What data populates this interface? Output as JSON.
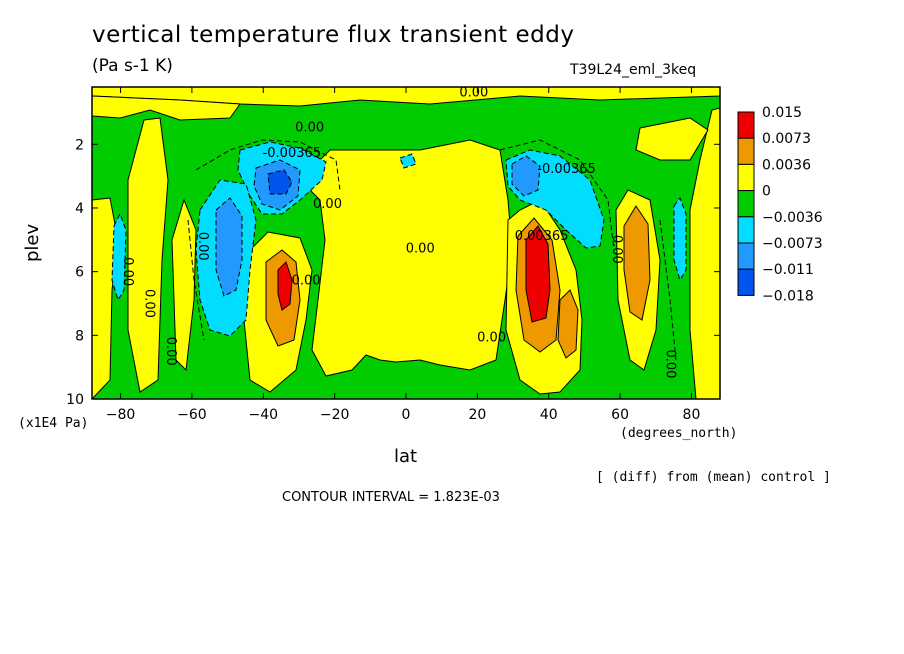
{
  "header": {
    "title": "vertical temperature flux transient eddy",
    "units": "(Pa s-1 K)",
    "run": "T39L24_eml_3keq"
  },
  "footer": {
    "diff_note": "[ (diff) from (mean) control ]",
    "contour_interval": "CONTOUR INTERVAL = 1.823E-03"
  },
  "chart_data": {
    "type": "heatmap",
    "title": "vertical temperature flux transient eddy",
    "subtitle": "(Pa s-1 K)",
    "xlabel": "lat",
    "x_units": "(degrees_north)",
    "ylabel": "plev",
    "y_units": "(x1E4 Pa)",
    "xlim": [
      -88,
      88
    ],
    "ylim": [
      10,
      0.2
    ],
    "x_ticks": [
      -80,
      -60,
      -40,
      -20,
      0,
      20,
      40,
      60,
      80
    ],
    "y_ticks": [
      2,
      4,
      6,
      8,
      10
    ],
    "colors": {
      "red": "#ee0000",
      "orange": "#ee9900",
      "yellow": "#ffff00",
      "green": "#00cc00",
      "cyan": "#00ddff",
      "blue": "#2299ff",
      "dark_blue": "#0055ee"
    },
    "legend": {
      "placement": "right",
      "levels": [
        "0.015",
        "0.0073",
        "0.0036",
        "0",
        "-0.0036",
        "-0.0073",
        "-0.011",
        "-0.018"
      ],
      "colors": [
        "#ee0000",
        "#ee9900",
        "#ffff00",
        "#00cc00",
        "#00ddff",
        "#2299ff",
        "#0055ee"
      ]
    },
    "contour_labels": [
      {
        "text": "0.00",
        "lat": 19,
        "plev": 0.5
      },
      {
        "text": "0.00",
        "lat": -27,
        "plev": 1.6
      },
      {
        "text": "-0.00365",
        "lat": -32,
        "plev": 2.4
      },
      {
        "text": "0.00",
        "lat": -22,
        "plev": 4.0
      },
      {
        "text": "0.00",
        "lat": 4,
        "plev": 5.4
      },
      {
        "text": "-0.00365",
        "lat": 45,
        "plev": 2.9
      },
      {
        "text": "0.00365",
        "lat": 38,
        "plev": 5.0
      },
      {
        "text": "0.00",
        "lat": -58,
        "plev": 5.2
      },
      {
        "text": "0.00",
        "lat": -79,
        "plev": 6.0
      },
      {
        "text": "0.00",
        "lat": -73,
        "plev": 7.0
      },
      {
        "text": "0.00",
        "lat": -67,
        "plev": 8.5
      },
      {
        "text": "0.00",
        "lat": -28,
        "plev": 6.4
      },
      {
        "text": "0.00",
        "lat": 24,
        "plev": 8.2
      },
      {
        "text": "0.00",
        "lat": 58,
        "plev": 5.3
      },
      {
        "text": "0.00",
        "lat": 73,
        "plev": 8.9
      }
    ]
  }
}
